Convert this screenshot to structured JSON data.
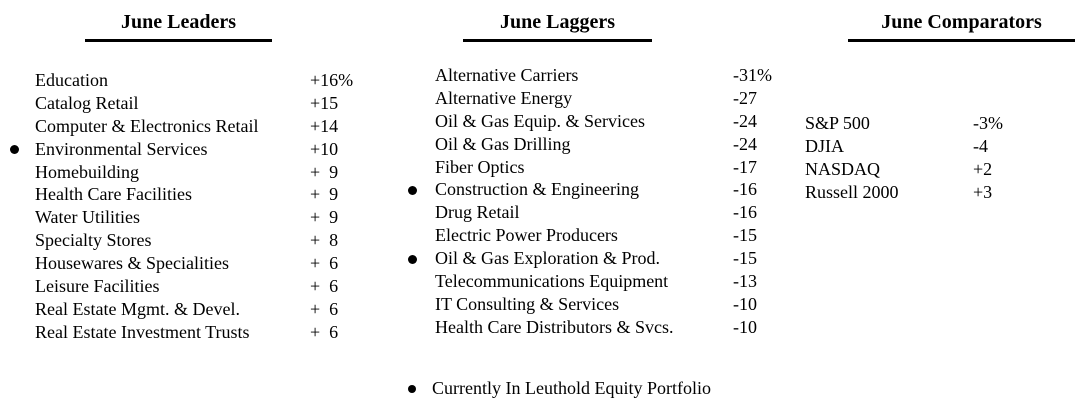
{
  "colors": {
    "text": "#000000",
    "background": "#ffffff"
  },
  "columns": [
    {
      "title": "June Leaders",
      "rows": [
        {
          "label": "Education",
          "value": "+16%",
          "bullet": false
        },
        {
          "label": "Catalog Retail",
          "value": "+15",
          "bullet": false
        },
        {
          "label": "Computer & Electronics Retail",
          "value": "+14",
          "bullet": false
        },
        {
          "label": "Environmental Services",
          "value": "+10",
          "bullet": true
        },
        {
          "label": "Homebuilding",
          "value": "+  9",
          "bullet": false
        },
        {
          "label": "Health Care Facilities",
          "value": "+  9",
          "bullet": false
        },
        {
          "label": "Water Utilities",
          "value": "+  9",
          "bullet": false
        },
        {
          "label": "Specialty Stores",
          "value": "+  8",
          "bullet": false
        },
        {
          "label": "Housewares & Specialities",
          "value": "+  6",
          "bullet": false
        },
        {
          "label": "Leisure Facilities",
          "value": "+  6",
          "bullet": false
        },
        {
          "label": "Real Estate Mgmt. & Devel.",
          "value": "+  6",
          "bullet": false
        },
        {
          "label": "Real Estate Investment Trusts",
          "value": "+  6",
          "bullet": false
        }
      ]
    },
    {
      "title": "June Laggers",
      "rows": [
        {
          "label": "Alternative Carriers",
          "value": "-31%",
          "bullet": false
        },
        {
          "label": "Alternative Energy",
          "value": "-27",
          "bullet": false
        },
        {
          "label": "Oil & Gas Equip. & Services",
          "value": "-24",
          "bullet": false
        },
        {
          "label": "Oil & Gas Drilling",
          "value": "-24",
          "bullet": false
        },
        {
          "label": "Fiber Optics",
          "value": "-17",
          "bullet": false
        },
        {
          "label": "Construction & Engineering",
          "value": "-16",
          "bullet": true
        },
        {
          "label": "Drug Retail",
          "value": "-16",
          "bullet": false
        },
        {
          "label": "Electric Power Producers",
          "value": "-15",
          "bullet": false
        },
        {
          "label": "Oil & Gas Exploration & Prod.",
          "value": "-15",
          "bullet": true
        },
        {
          "label": "Telecommunications Equipment",
          "value": "-13",
          "bullet": false
        },
        {
          "label": "IT Consulting & Services",
          "value": "-10",
          "bullet": false
        },
        {
          "label": "Health Care Distributors & Svcs.",
          "value": "-10",
          "bullet": false
        }
      ]
    },
    {
      "title": "June Comparators",
      "rows": [
        {
          "label": "S&P 500",
          "value": "-3%",
          "bullet": false
        },
        {
          "label": "DJIA",
          "value": "-4",
          "bullet": false
        },
        {
          "label": "NASDAQ",
          "value": "+2",
          "bullet": false
        },
        {
          "label": "Russell 2000",
          "value": "+3",
          "bullet": false
        }
      ]
    }
  ],
  "footnote": {
    "text": "Currently In Leuthold Equity Portfolio"
  }
}
